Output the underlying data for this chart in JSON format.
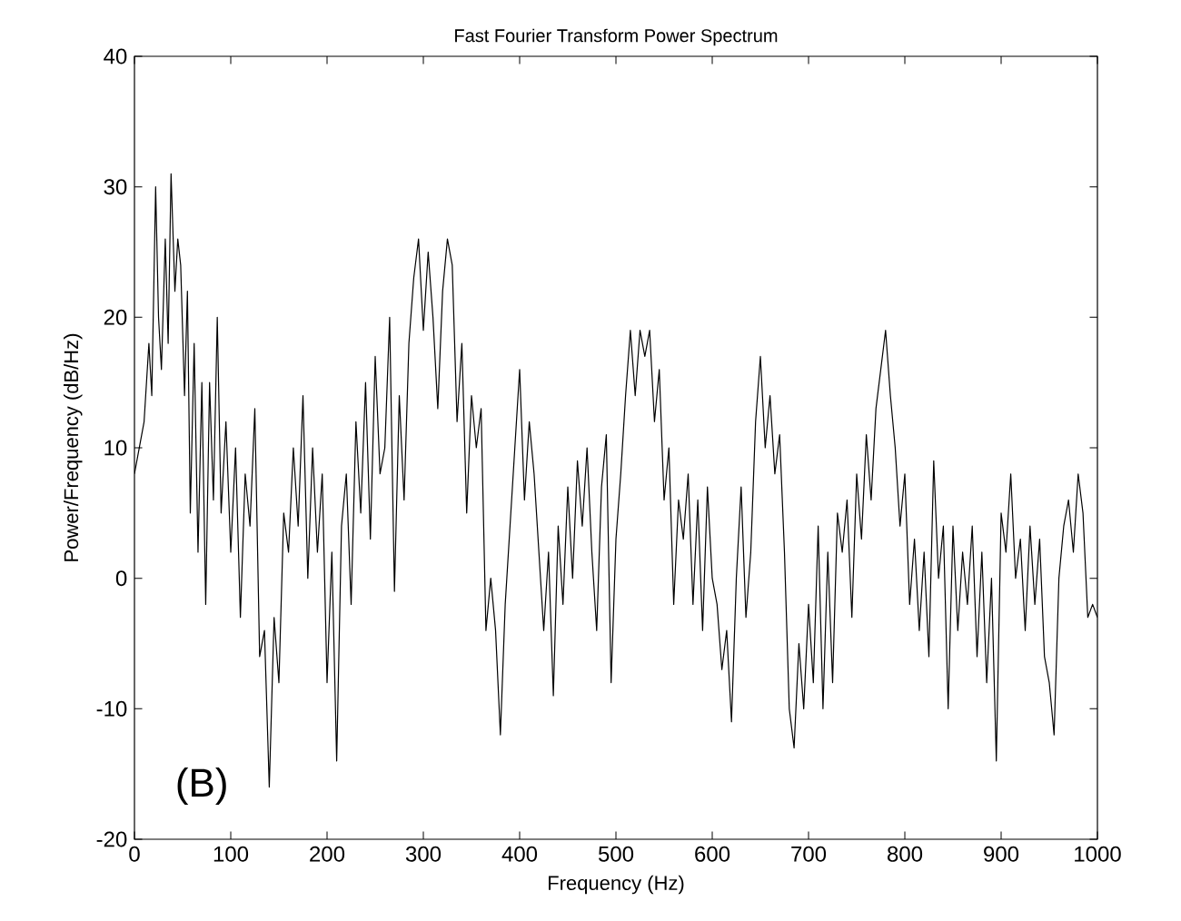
{
  "chart_data": {
    "type": "line",
    "title": "Fast Fourier Transform Power Spectrum",
    "xlabel": "Frequency (Hz)",
    "ylabel": "Power/Frequency (dB/Hz)",
    "annotations": [
      "(B)"
    ],
    "xlim": [
      0,
      1000
    ],
    "ylim": [
      -20,
      40
    ],
    "xticks": [
      0,
      100,
      200,
      300,
      400,
      500,
      600,
      700,
      800,
      900,
      1000
    ],
    "yticks": [
      -20,
      -10,
      0,
      10,
      20,
      30,
      40
    ],
    "grid": false,
    "marker": "none",
    "line_style": "solid",
    "series": [
      {
        "color": "#000000",
        "x": [
          0,
          5,
          10,
          15,
          18,
          22,
          25,
          28,
          32,
          35,
          38,
          42,
          45,
          48,
          52,
          55,
          58,
          62,
          66,
          70,
          74,
          78,
          82,
          86,
          90,
          95,
          100,
          105,
          110,
          115,
          120,
          125,
          130,
          135,
          140,
          145,
          150,
          155,
          160,
          165,
          170,
          175,
          180,
          185,
          190,
          195,
          200,
          205,
          210,
          215,
          220,
          225,
          230,
          235,
          240,
          245,
          250,
          255,
          260,
          265,
          270,
          275,
          280,
          285,
          290,
          295,
          300,
          305,
          310,
          315,
          320,
          325,
          330,
          335,
          340,
          345,
          350,
          355,
          360,
          365,
          370,
          375,
          380,
          385,
          390,
          395,
          400,
          405,
          410,
          415,
          420,
          425,
          430,
          435,
          440,
          445,
          450,
          455,
          460,
          465,
          470,
          475,
          480,
          485,
          490,
          495,
          500,
          505,
          510,
          515,
          520,
          525,
          530,
          535,
          540,
          545,
          550,
          555,
          560,
          565,
          570,
          575,
          580,
          585,
          590,
          595,
          600,
          605,
          610,
          615,
          620,
          625,
          630,
          635,
          640,
          645,
          650,
          655,
          660,
          665,
          670,
          675,
          680,
          685,
          690,
          695,
          700,
          705,
          710,
          715,
          720,
          725,
          730,
          735,
          740,
          745,
          750,
          755,
          760,
          765,
          770,
          775,
          780,
          785,
          790,
          795,
          800,
          805,
          810,
          815,
          820,
          825,
          830,
          835,
          840,
          845,
          850,
          855,
          860,
          865,
          870,
          875,
          880,
          885,
          890,
          895,
          900,
          905,
          910,
          915,
          920,
          925,
          930,
          935,
          940,
          945,
          950,
          955,
          960,
          965,
          970,
          975,
          980,
          985,
          990,
          995,
          1000
        ],
        "values": [
          8,
          10,
          12,
          18,
          14,
          30,
          20,
          16,
          26,
          18,
          31,
          22,
          26,
          24,
          14,
          22,
          5,
          18,
          2,
          15,
          -2,
          15,
          6,
          20,
          5,
          12,
          2,
          10,
          -3,
          8,
          4,
          13,
          -6,
          -4,
          -16,
          -3,
          -8,
          5,
          2,
          10,
          4,
          14,
          0,
          10,
          2,
          8,
          -8,
          2,
          -14,
          4,
          8,
          -2,
          12,
          5,
          15,
          3,
          17,
          8,
          10,
          20,
          -1,
          14,
          6,
          18,
          23,
          26,
          19,
          25,
          20,
          13,
          22,
          26,
          24,
          12,
          18,
          5,
          14,
          10,
          13,
          -4,
          0,
          -4,
          -12,
          -2,
          4,
          10,
          16,
          6,
          12,
          8,
          2,
          -4,
          2,
          -9,
          4,
          -2,
          7,
          0,
          9,
          4,
          10,
          2,
          -4,
          7,
          11,
          -8,
          3,
          8,
          14,
          19,
          14,
          19,
          17,
          19,
          12,
          16,
          6,
          10,
          -2,
          6,
          3,
          8,
          -2,
          6,
          -4,
          7,
          0,
          -2,
          -7,
          -4,
          -11,
          0,
          7,
          -3,
          2,
          12,
          17,
          10,
          14,
          8,
          11,
          2,
          -10,
          -13,
          -5,
          -10,
          -2,
          -8,
          4,
          -10,
          2,
          -8,
          5,
          2,
          6,
          -3,
          8,
          3,
          11,
          6,
          13,
          16,
          19,
          14,
          10,
          4,
          8,
          -2,
          3,
          -4,
          2,
          -6,
          9,
          0,
          4,
          -10,
          4,
          -4,
          2,
          -2,
          4,
          -6,
          2,
          -8,
          0,
          -14,
          5,
          2,
          8,
          0,
          3,
          -4,
          4,
          -2,
          3,
          -6,
          -8,
          -12,
          0,
          4,
          6,
          2,
          8,
          5,
          -3,
          -2,
          -3
        ]
      }
    ]
  }
}
